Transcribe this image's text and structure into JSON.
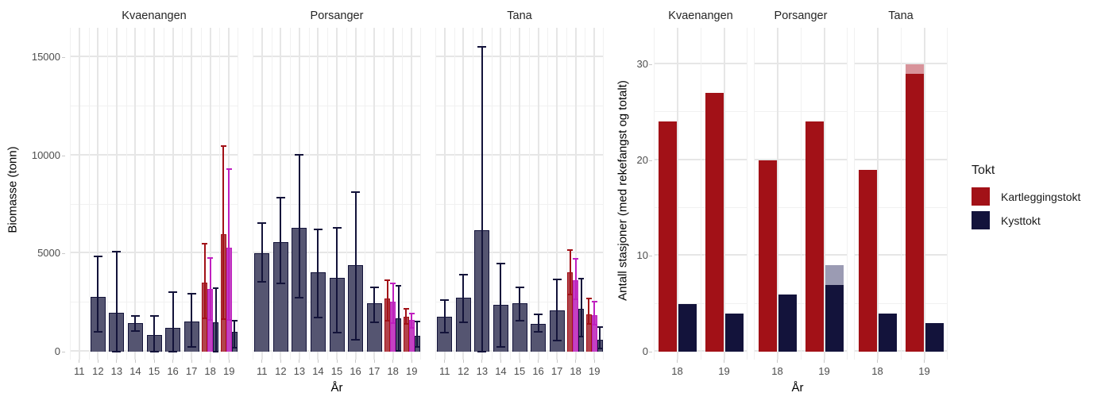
{
  "legend": {
    "title": "Tokt",
    "items": [
      {
        "id": "kartleggingstokt",
        "label": "Kartleggingstokt",
        "color": "#a21117"
      },
      {
        "id": "kysttokt",
        "label": "Kysttokt",
        "color": "#13133b"
      }
    ]
  },
  "colors": {
    "kartleggingstokt": "#a21117",
    "kysttokt": "#13133b",
    "kartleggingstokt_total_light": "#d8939a",
    "kysttokt_total_light": "#9b9bb3",
    "biomasse_kysttokt_fill": "#555571",
    "biomasse_kysttokt_line": "#13133a",
    "biomasse_kartleggingstokt_fill": "#b2434b",
    "biomasse_kartleggingstokt_line": "#a21117",
    "biomasse_kartleggingstokt_alt_fill": "#c341c3",
    "biomasse_kartleggingstokt_alt_line": "#bf1fbf",
    "grid_major": "#e6e6e6",
    "grid_minor": "#f1f1f1",
    "axis_text": "#4d4d4d"
  },
  "chart_data": [
    {
      "type": "bar",
      "id": "biomasse",
      "ylabel": "Biomasse (tonn)",
      "xlabel": "År",
      "ylim": [
        0,
        16500
      ],
      "yticks": [
        0,
        5000,
        10000,
        15000
      ],
      "yticks_minor": [
        2500,
        7500,
        12500
      ],
      "grid": true,
      "categories": [
        "11",
        "12",
        "13",
        "14",
        "15",
        "16",
        "17",
        "18",
        "19"
      ],
      "error_bars": "shown",
      "facets": [
        {
          "name": "Kvaenangen",
          "bars": [
            {
              "year": "12",
              "series": "kysttokt",
              "value": 2800,
              "ci": [
                1050,
                4800
              ]
            },
            {
              "year": "13",
              "series": "kysttokt",
              "value": 2000,
              "ci": [
                50,
                5050
              ]
            },
            {
              "year": "14",
              "series": "kysttokt",
              "value": 1450,
              "ci": [
                1100,
                1800
              ]
            },
            {
              "year": "15",
              "series": "kysttokt",
              "value": 850,
              "ci": [
                50,
                1800
              ]
            },
            {
              "year": "16",
              "series": "kysttokt",
              "value": 1200,
              "ci": [
                50,
                3000
              ]
            },
            {
              "year": "17",
              "series": "kysttokt",
              "value": 1550,
              "ci": [
                300,
                2900
              ]
            },
            {
              "year": "18",
              "series": "kartleggingstokt",
              "value": 3500,
              "ci": [
                1750,
                5450
              ]
            },
            {
              "year": "18",
              "series": "kartleggingstokt_alt",
              "value": 3200,
              "ci": [
                1650,
                4750
              ]
            },
            {
              "year": "18",
              "series": "kysttokt",
              "value": 1500,
              "ci": [
                50,
                3200
              ]
            },
            {
              "year": "19",
              "series": "kartleggingstokt",
              "value": 6000,
              "ci": [
                1700,
                10450
              ]
            },
            {
              "year": "19",
              "series": "kartleggingstokt_alt",
              "value": 5300,
              "ci": [
                1650,
                9250
              ]
            },
            {
              "year": "19",
              "series": "kysttokt",
              "value": 1000,
              "ci": [
                250,
                1550
              ]
            }
          ]
        },
        {
          "name": "Porsanger",
          "bars": [
            {
              "year": "11",
              "series": "kysttokt",
              "value": 5000,
              "ci": [
                3600,
                6500
              ]
            },
            {
              "year": "12",
              "series": "kysttokt",
              "value": 5600,
              "ci": [
                3500,
                7800
              ]
            },
            {
              "year": "13",
              "series": "kysttokt",
              "value": 6300,
              "ci": [
                2800,
                10000
              ]
            },
            {
              "year": "14",
              "series": "kysttokt",
              "value": 4050,
              "ci": [
                1800,
                6200
              ]
            },
            {
              "year": "15",
              "series": "kysttokt",
              "value": 3750,
              "ci": [
                1000,
                6250
              ]
            },
            {
              "year": "16",
              "series": "kysttokt",
              "value": 4400,
              "ci": [
                650,
                8100
              ]
            },
            {
              "year": "17",
              "series": "kysttokt",
              "value": 2450,
              "ci": [
                1550,
                3250
              ]
            },
            {
              "year": "18",
              "series": "kartleggingstokt",
              "value": 2700,
              "ci": [
                1600,
                3600
              ]
            },
            {
              "year": "18",
              "series": "kartleggingstokt_alt",
              "value": 2550,
              "ci": [
                1500,
                3450
              ]
            },
            {
              "year": "18",
              "series": "kysttokt",
              "value": 1700,
              "ci": [
                100,
                3300
              ]
            },
            {
              "year": "19",
              "series": "kartleggingstokt",
              "value": 1800,
              "ci": [
                1450,
                2150
              ]
            },
            {
              "year": "19",
              "series": "kartleggingstokt_alt",
              "value": 1600,
              "ci": [
                1250,
                1900
              ]
            },
            {
              "year": "19",
              "series": "kysttokt",
              "value": 800,
              "ci": [
                300,
                1500
              ]
            }
          ]
        },
        {
          "name": "Tana",
          "bars": [
            {
              "year": "11",
              "series": "kysttokt",
              "value": 1800,
              "ci": [
                1000,
                2600
              ]
            },
            {
              "year": "12",
              "series": "kysttokt",
              "value": 2750,
              "ci": [
                1550,
                3900
              ]
            },
            {
              "year": "13",
              "series": "kysttokt",
              "value": 6200,
              "ci": [
                50,
                15500
              ]
            },
            {
              "year": "14",
              "series": "kysttokt",
              "value": 2400,
              "ci": [
                300,
                4450
              ]
            },
            {
              "year": "15",
              "series": "kysttokt",
              "value": 2450,
              "ci": [
                1600,
                3250
              ]
            },
            {
              "year": "16",
              "series": "kysttokt",
              "value": 1400,
              "ci": [
                1050,
                1850
              ]
            },
            {
              "year": "17",
              "series": "kysttokt",
              "value": 2100,
              "ci": [
                600,
                3650
              ]
            },
            {
              "year": "18",
              "series": "kartleggingstokt",
              "value": 4050,
              "ci": [
                2950,
                5150
              ]
            },
            {
              "year": "18",
              "series": "kartleggingstokt_alt",
              "value": 3650,
              "ci": [
                2700,
                4700
              ]
            },
            {
              "year": "18",
              "series": "kysttokt",
              "value": 2200,
              "ci": [
                800,
                3700
              ]
            },
            {
              "year": "19",
              "series": "kartleggingstokt",
              "value": 1900,
              "ci": [
                1450,
                2650
              ]
            },
            {
              "year": "19",
              "series": "kartleggingstokt_alt",
              "value": 1850,
              "ci": [
                1400,
                2500
              ]
            },
            {
              "year": "19",
              "series": "kysttokt",
              "value": 600,
              "ci": [
                200,
                1200
              ]
            }
          ]
        }
      ]
    },
    {
      "type": "bar",
      "id": "stasjoner",
      "ylabel": "Antall stasjoner (med rekefangst og totalt)",
      "xlabel": "År",
      "ylim": [
        0,
        33.8
      ],
      "yticks": [
        0,
        10,
        20,
        30
      ],
      "yticks_minor": [
        5,
        15,
        25
      ],
      "grid": true,
      "categories": [
        "18",
        "19"
      ],
      "facets": [
        {
          "name": "Kvaenangen",
          "groups": [
            {
              "year": "18",
              "bars": [
                {
                  "series": "kartleggingstokt",
                  "med_rekefangst": 24,
                  "totalt": 24
                },
                {
                  "series": "kysttokt",
                  "med_rekefangst": 5,
                  "totalt": 5
                }
              ]
            },
            {
              "year": "19",
              "bars": [
                {
                  "series": "kartleggingstokt",
                  "med_rekefangst": 27,
                  "totalt": 27
                },
                {
                  "series": "kysttokt",
                  "med_rekefangst": 4,
                  "totalt": 4
                }
              ]
            }
          ]
        },
        {
          "name": "Porsanger",
          "groups": [
            {
              "year": "18",
              "bars": [
                {
                  "series": "kartleggingstokt",
                  "med_rekefangst": 20,
                  "totalt": 20
                },
                {
                  "series": "kysttokt",
                  "med_rekefangst": 6,
                  "totalt": 6
                }
              ]
            },
            {
              "year": "19",
              "bars": [
                {
                  "series": "kartleggingstokt",
                  "med_rekefangst": 24,
                  "totalt": 24
                },
                {
                  "series": "kysttokt",
                  "med_rekefangst": 7,
                  "totalt": 9
                }
              ]
            }
          ]
        },
        {
          "name": "Tana",
          "groups": [
            {
              "year": "18",
              "bars": [
                {
                  "series": "kartleggingstokt",
                  "med_rekefangst": 19,
                  "totalt": 19
                },
                {
                  "series": "kysttokt",
                  "med_rekefangst": 4,
                  "totalt": 4
                }
              ]
            },
            {
              "year": "19",
              "bars": [
                {
                  "series": "kartleggingstokt",
                  "med_rekefangst": 29,
                  "totalt": 30
                },
                {
                  "series": "kysttokt",
                  "med_rekefangst": 3,
                  "totalt": 3
                }
              ]
            }
          ]
        }
      ]
    }
  ]
}
